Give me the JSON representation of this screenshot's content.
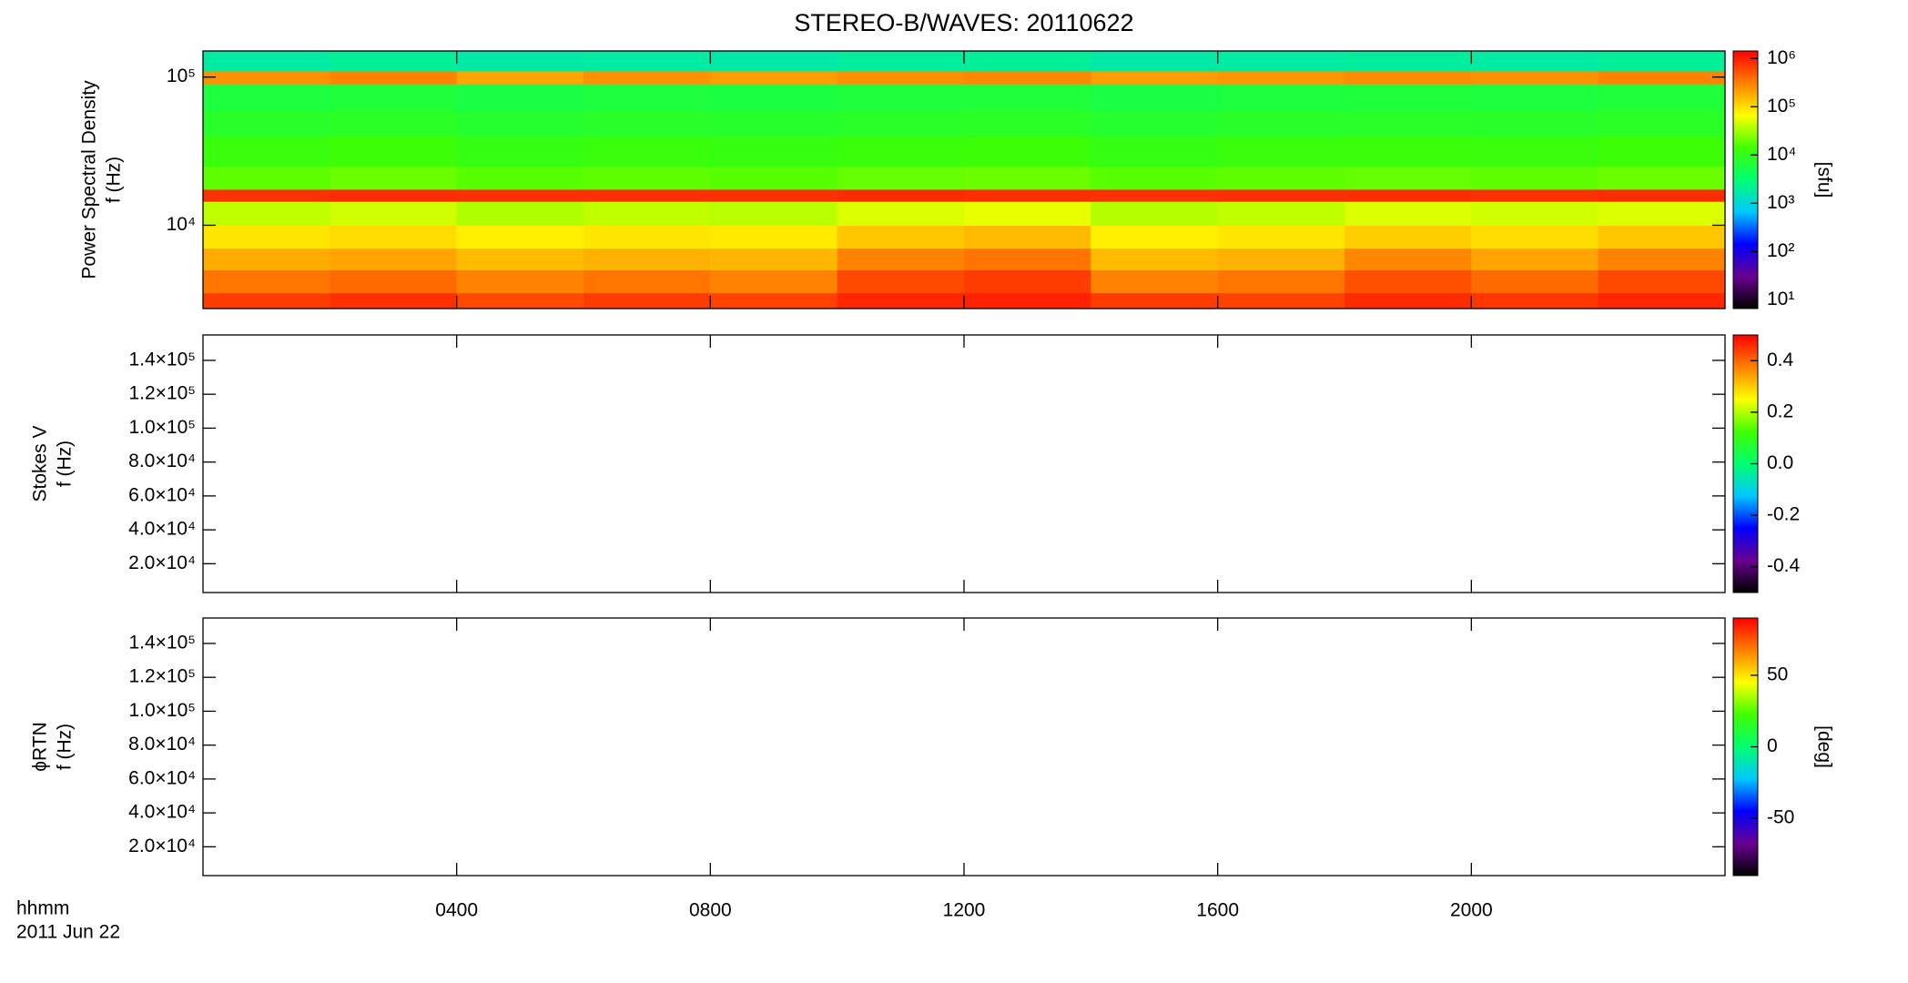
{
  "chart_data": [
    {
      "type": "heatmap",
      "title": "STEREO-B/WAVES: 20110622",
      "ylabel": [
        "Power Spectral Density",
        "f (Hz)"
      ],
      "yscale": "log",
      "ylim": [
        2740,
        150000
      ],
      "yticks": [
        {
          "value": 10000,
          "label": "10⁴"
        },
        {
          "value": 100000,
          "label": "10⁵"
        }
      ],
      "xbins": [
        0,
        2,
        4,
        6,
        8,
        10,
        12,
        14,
        16,
        18,
        20,
        22,
        24
      ],
      "ybins": [
        2740,
        3500,
        5000,
        7000,
        10000,
        14500,
        17500,
        25000,
        40000,
        60000,
        90000,
        110000,
        150000
      ],
      "z": [
        [
          700000,
          800000,
          600000,
          700000,
          650000,
          900000,
          950000,
          700000,
          650000,
          850000,
          750000,
          900000
        ],
        [
          350000,
          400000,
          300000,
          350000,
          300000,
          600000,
          700000,
          300000,
          350000,
          550000,
          400000,
          600000
        ],
        [
          180000,
          200000,
          150000,
          170000,
          160000,
          300000,
          350000,
          150000,
          170000,
          280000,
          200000,
          300000
        ],
        [
          90000,
          100000,
          80000,
          90000,
          85000,
          130000,
          150000,
          80000,
          90000,
          120000,
          100000,
          130000
        ],
        [
          40000,
          45000,
          35000,
          40000,
          38000,
          50000,
          55000,
          36000,
          40000,
          50000,
          45000,
          50000
        ],
        [
          800000,
          850000,
          800000,
          820000,
          800000,
          850000,
          830000,
          800000,
          820000,
          840000,
          800000,
          850000
        ],
        [
          18000,
          20000,
          17000,
          18000,
          17000,
          19000,
          20000,
          17000,
          18000,
          19000,
          18000,
          20000
        ],
        [
          12000,
          13000,
          11000,
          12000,
          11500,
          12500,
          13000,
          11000,
          12000,
          12500,
          12000,
          13000
        ],
        [
          8000,
          8500,
          7500,
          8000,
          7800,
          8200,
          8500,
          7500,
          8000,
          8300,
          8000,
          8500
        ],
        [
          6000,
          6500,
          5500,
          6000,
          5800,
          6200,
          6500,
          5500,
          6000,
          6300,
          6000,
          6500
        ],
        [
          250000,
          300000,
          200000,
          250000,
          220000,
          260000,
          280000,
          220000,
          240000,
          270000,
          250000,
          300000
        ],
        [
          1800,
          2000,
          1700,
          1800,
          1700,
          1900,
          2000,
          1700,
          1800,
          1900,
          1800,
          2000
        ]
      ],
      "zscale": "log",
      "zlim": [
        6.6,
        1430000
      ],
      "zticks": [
        {
          "value": 10,
          "label": "10¹"
        },
        {
          "value": 100,
          "label": "10²"
        },
        {
          "value": 1000,
          "label": "10³"
        },
        {
          "value": 10000,
          "label": "10⁴"
        },
        {
          "value": 100000,
          "label": "10⁵"
        },
        {
          "value": 1000000,
          "label": "10⁶"
        }
      ],
      "zlabel": "[sfu]",
      "colorscale": [
        "#000000",
        "#6a0090",
        "#0000ff",
        "#00c8ff",
        "#00ff70",
        "#40ff00",
        "#ffff00",
        "#ff8000",
        "#ff0000"
      ]
    },
    {
      "type": "heatmap",
      "ylabel": [
        "Stokes V",
        "f (Hz)"
      ],
      "ylim": [
        3000,
        155000
      ],
      "yticks": [
        {
          "value": 20000,
          "label": "2.0×10⁴"
        },
        {
          "value": 40000,
          "label": "4.0×10⁴"
        },
        {
          "value": 60000,
          "label": "6.0×10⁴"
        },
        {
          "value": 80000,
          "label": "8.0×10⁴"
        },
        {
          "value": 100000,
          "label": "1.0×10⁵"
        },
        {
          "value": 120000,
          "label": "1.2×10⁵"
        },
        {
          "value": 140000,
          "label": "1.4×10⁵"
        }
      ],
      "zlim": [
        -0.5,
        0.5
      ],
      "zticks": [
        {
          "value": -0.4,
          "label": "-0.4"
        },
        {
          "value": -0.2,
          "label": "-0.2"
        },
        {
          "value": 0,
          "label": "0.0"
        },
        {
          "value": 0.2,
          "label": "0.2"
        },
        {
          "value": 0.4,
          "label": "0.4"
        }
      ],
      "colorscale": [
        "#000000",
        "#6a0090",
        "#0000ff",
        "#00c8ff",
        "#00ff70",
        "#40ff00",
        "#ffff00",
        "#ff8000",
        "#ff0000"
      ]
    },
    {
      "type": "heatmap",
      "ylabel": [
        "ϕRTN",
        "f (Hz)"
      ],
      "ylim": [
        3000,
        155000
      ],
      "yticks": [
        {
          "value": 20000,
          "label": "2.0×10⁴"
        },
        {
          "value": 40000,
          "label": "4.0×10⁴"
        },
        {
          "value": 60000,
          "label": "6.0×10⁴"
        },
        {
          "value": 80000,
          "label": "8.0×10⁴"
        },
        {
          "value": 100000,
          "label": "1.0×10⁵"
        },
        {
          "value": 120000,
          "label": "1.2×10⁵"
        },
        {
          "value": 140000,
          "label": "1.4×10⁵"
        }
      ],
      "zlim": [
        -90,
        90
      ],
      "zticks": [
        -50,
        0,
        50
      ],
      "zlabel": "[deg]",
      "colorscale": [
        "#000000",
        "#6a0090",
        "#0000ff",
        "#00c8ff",
        "#00ff70",
        "#40ff00",
        "#ffff00",
        "#ff8000",
        "#ff0000"
      ],
      "xlim": [
        0,
        24
      ],
      "xticks": [
        {
          "value": 4,
          "label": "0400"
        },
        {
          "value": 8,
          "label": "0800"
        },
        {
          "value": 12,
          "label": "1200"
        },
        {
          "value": 16,
          "label": "1600"
        },
        {
          "value": 20,
          "label": "2000"
        }
      ],
      "xlabel": [
        "hhmm",
        "2011 Jun 22"
      ]
    }
  ]
}
